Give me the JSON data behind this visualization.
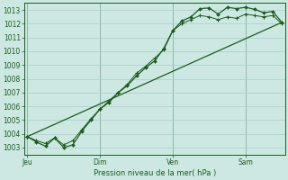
{
  "background_color": "#cde8e3",
  "grid_color": "#a8cdc8",
  "line_color": "#1a5c1a",
  "title": "Pression niveau de la mer( hPa )",
  "ylim": [
    1002.5,
    1013.5
  ],
  "yticks": [
    1003,
    1004,
    1005,
    1006,
    1007,
    1008,
    1009,
    1010,
    1011,
    1012,
    1013
  ],
  "day_labels": [
    "Jeu",
    "Dim",
    "Ven",
    "Sam"
  ],
  "day_positions": [
    0,
    48,
    96,
    144
  ],
  "xlim": [
    -2,
    170
  ],
  "line1_x": [
    0,
    6,
    12,
    18,
    24,
    30,
    36,
    42,
    48,
    54,
    60,
    66,
    72,
    78,
    84,
    90,
    96,
    102,
    108,
    114,
    120,
    126,
    132,
    138,
    144,
    150,
    156,
    162,
    168
  ],
  "line1_y": [
    1003.8,
    1003.4,
    1003.1,
    1003.7,
    1003.0,
    1003.2,
    1004.2,
    1005.0,
    1005.8,
    1006.3,
    1007.0,
    1007.5,
    1008.2,
    1008.8,
    1009.3,
    1010.2,
    1011.5,
    1012.2,
    1012.5,
    1013.1,
    1013.15,
    1012.7,
    1013.2,
    1013.1,
    1013.2,
    1013.05,
    1012.8,
    1012.9,
    1012.1
  ],
  "line2_x": [
    0,
    6,
    12,
    18,
    24,
    30,
    36,
    42,
    48,
    54,
    60,
    66,
    72,
    78,
    84,
    90,
    96,
    102,
    108,
    114,
    120,
    126,
    132,
    138,
    144,
    150,
    156,
    162,
    168
  ],
  "line2_y": [
    1003.8,
    1003.5,
    1003.3,
    1003.7,
    1003.2,
    1003.5,
    1004.3,
    1005.1,
    1005.8,
    1006.4,
    1007.0,
    1007.6,
    1008.4,
    1008.9,
    1009.5,
    1010.1,
    1011.5,
    1012.0,
    1012.3,
    1012.6,
    1012.5,
    1012.3,
    1012.5,
    1012.4,
    1012.7,
    1012.6,
    1012.5,
    1012.6,
    1012.0
  ],
  "line3_x": [
    0,
    168
  ],
  "line3_y": [
    1003.8,
    1012.1
  ]
}
